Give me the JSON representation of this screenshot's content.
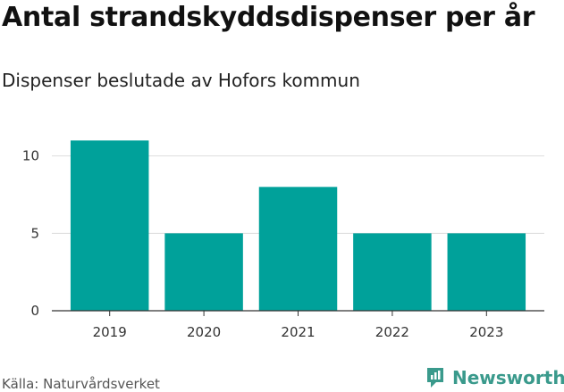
{
  "title": "Antal strandskyddsdispenser per år",
  "subtitle": "Dispenser beslutade av Hofors kommun",
  "source": "Källa: Naturvårdsverket",
  "brand": "Newsworthy",
  "colors": {
    "bar": "#00a19a",
    "grid": "#dddddd",
    "axis": "#333333",
    "brand": "#3a9a8c"
  },
  "chart_data": {
    "type": "bar",
    "title": "Antal strandskyddsdispenser per år",
    "subtitle": "Dispenser beslutade av Hofors kommun",
    "xlabel": "",
    "ylabel": "",
    "categories": [
      "2019",
      "2020",
      "2021",
      "2022",
      "2023"
    ],
    "values": [
      11,
      5,
      8,
      5,
      5
    ],
    "ylim": [
      0,
      12
    ],
    "yticks": [
      0,
      5,
      10
    ],
    "grid": true,
    "legend": "none"
  }
}
